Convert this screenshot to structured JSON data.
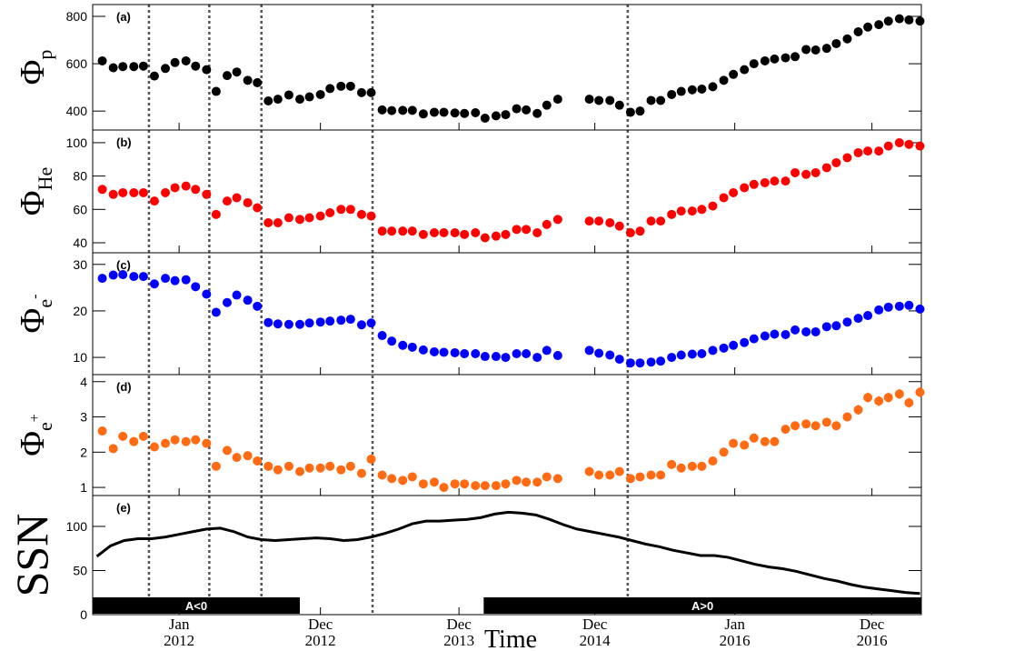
{
  "chart_data": {
    "type": "panels",
    "xlabel": "Time",
    "xlim": [
      2011.37,
      2017.41
    ],
    "xticks": [
      {
        "value": 2012.0,
        "label": "Jan 2012"
      },
      {
        "value": 2013.03,
        "label": "Dec 2012"
      },
      {
        "value": 2014.04,
        "label": "Dec 2013"
      },
      {
        "value": 2015.03,
        "label": "Dec 2014"
      },
      {
        "value": 2016.05,
        "label": "Jan 2016"
      },
      {
        "value": 2017.05,
        "label": "Dec 2016"
      }
    ],
    "reversal_lines": [
      2011.78,
      2012.22,
      2012.6,
      2013.41,
      2015.27
    ],
    "polarity_bands": [
      {
        "label": "A<0",
        "start": 2011.37,
        "end": 2012.88
      },
      {
        "label": "A>0",
        "start": 2014.22,
        "end": 2017.41
      }
    ],
    "x": [
      2011.44,
      2011.52,
      2011.59,
      2011.67,
      2011.74,
      2011.82,
      2011.9,
      2011.97,
      2012.05,
      2012.12,
      2012.2,
      2012.27,
      2012.35,
      2012.42,
      2012.5,
      2012.57,
      2012.65,
      2012.72,
      2012.8,
      2012.88,
      2012.95,
      2013.03,
      2013.1,
      2013.18,
      2013.25,
      2013.33,
      2013.4,
      2013.48,
      2013.55,
      2013.63,
      2013.7,
      2013.78,
      2013.86,
      2013.93,
      2014.01,
      2014.08,
      2014.16,
      2014.23,
      2014.31,
      2014.38,
      2014.46,
      2014.53,
      2014.61,
      2014.68,
      2014.76,
      2014.83,
      2014.91,
      2014.99,
      2015.06,
      2015.14,
      2015.21,
      2015.29,
      2015.36,
      2015.44,
      2015.51,
      2015.59,
      2015.66,
      2015.74,
      2015.81,
      2015.89,
      2015.97,
      2016.04,
      2016.12,
      2016.19,
      2016.27,
      2016.34,
      2016.42,
      2016.49,
      2016.57,
      2016.64,
      2016.72,
      2016.79,
      2016.87,
      2016.95,
      2017.02,
      2017.1,
      2017.17,
      2017.25,
      2017.32,
      2017.4
    ],
    "panels": [
      {
        "type": "scatter",
        "label": "(a)",
        "ylabel": "Φ",
        "ylabel_sub": "p",
        "color": "#000000",
        "ylim": [
          320,
          850
        ],
        "yticks": [
          400,
          600,
          800
        ],
        "values": [
          612,
          583,
          588,
          588,
          590,
          548,
          580,
          605,
          612,
          590,
          575,
          483,
          550,
          565,
          530,
          520,
          443,
          450,
          468,
          450,
          460,
          470,
          495,
          505,
          505,
          478,
          478,
          405,
          402,
          403,
          403,
          388,
          395,
          395,
          392,
          390,
          393,
          370,
          380,
          385,
          410,
          405,
          390,
          425,
          450,
          null,
          null,
          450,
          445,
          445,
          425,
          395,
          400,
          445,
          445,
          470,
          483,
          490,
          493,
          503,
          530,
          555,
          575,
          600,
          612,
          620,
          625,
          630,
          660,
          658,
          665,
          685,
          705,
          735,
          755,
          765,
          780,
          790,
          785,
          780
        ]
      },
      {
        "type": "scatter",
        "label": "(b)",
        "ylabel": "Φ",
        "ylabel_sub": "He",
        "color": "#ff0000",
        "ylim": [
          34,
          107.6
        ],
        "yticks": [
          40,
          60,
          80,
          100
        ],
        "values": [
          72,
          69,
          70,
          70,
          70,
          65,
          70,
          73,
          74,
          72,
          69,
          57,
          65,
          67,
          64,
          61,
          52,
          52,
          55,
          54,
          55,
          56,
          58,
          60,
          60,
          57,
          56,
          47,
          47,
          47,
          47,
          45,
          46,
          46,
          46,
          45,
          46,
          43,
          44,
          45,
          48,
          48,
          46,
          51,
          54,
          null,
          null,
          53,
          53,
          52,
          50,
          46,
          47,
          53,
          53,
          57,
          59,
          59,
          60,
          62,
          67,
          70,
          73,
          75,
          76,
          77,
          77,
          82,
          81,
          82,
          85,
          88,
          91,
          94,
          95,
          95,
          98,
          100,
          99,
          98
        ]
      },
      {
        "type": "scatter",
        "label": "(c)",
        "ylabel": "Φ",
        "ylabel_sub": "e",
        "ylabel_sup": "-",
        "color": "#0000ff",
        "ylim": [
          6.3,
          32.5
        ],
        "yticks": [
          10,
          20,
          30
        ],
        "values": [
          27,
          27.7,
          27.8,
          27.4,
          27.4,
          25.8,
          27,
          26.5,
          26.7,
          25.2,
          23.6,
          19.7,
          21.8,
          23.4,
          22.3,
          21,
          17.5,
          17.2,
          17.1,
          17.1,
          17.4,
          17.6,
          17.8,
          18,
          18.2,
          17,
          17.4,
          14.7,
          13.5,
          12.6,
          12.2,
          11.6,
          11.2,
          11.1,
          11,
          10.8,
          10.8,
          10.2,
          10.2,
          10,
          10.8,
          10.8,
          10,
          11.5,
          10.4,
          null,
          null,
          11.5,
          10.9,
          10.5,
          9.6,
          8.8,
          8.8,
          9,
          9.2,
          10,
          10.5,
          10.7,
          10.8,
          11.5,
          12,
          12.6,
          13.2,
          14,
          14.6,
          15,
          14.9,
          15.9,
          15.5,
          15.5,
          16.6,
          16.8,
          17.6,
          18.4,
          19,
          20.2,
          20.8,
          21,
          21.2,
          20.4
        ]
      },
      {
        "type": "scatter",
        "label": "(d)",
        "ylabel": "Φ",
        "ylabel_sub": "e",
        "ylabel_sup": "+",
        "color": "#ff6a13",
        "ylim": [
          0.77,
          4.2
        ],
        "yticks": [
          1,
          2,
          3,
          4
        ],
        "values": [
          2.6,
          2.1,
          2.45,
          2.3,
          2.45,
          2.15,
          2.25,
          2.35,
          2.3,
          2.35,
          2.25,
          1.6,
          2.05,
          1.85,
          1.9,
          1.75,
          1.6,
          1.5,
          1.6,
          1.45,
          1.55,
          1.55,
          1.6,
          1.5,
          1.6,
          1.4,
          1.8,
          1.35,
          1.25,
          1.2,
          1.3,
          1.1,
          1.15,
          1.0,
          1.1,
          1.1,
          1.05,
          1.05,
          1.05,
          1.1,
          1.2,
          1.15,
          1.15,
          1.3,
          1.25,
          null,
          null,
          1.45,
          1.35,
          1.35,
          1.45,
          1.25,
          1.3,
          1.35,
          1.35,
          1.65,
          1.55,
          1.6,
          1.6,
          1.75,
          2.0,
          2.25,
          2.2,
          2.4,
          2.3,
          2.3,
          2.65,
          2.75,
          2.8,
          2.75,
          2.85,
          2.75,
          3.0,
          3.2,
          3.55,
          3.45,
          3.55,
          3.65,
          3.4,
          3.7
        ],
        "errors": [
          0.12,
          0.1,
          0.1,
          0.1,
          0.1,
          0.1,
          0.1,
          0.1,
          0.1,
          0.1,
          0.1,
          0.08,
          0.1,
          0.08,
          0.08,
          0.08,
          0.08,
          0.08,
          0.08,
          0.08,
          0.08,
          0.08,
          0.08,
          0.08,
          0.08,
          0.08,
          0.08,
          0.08,
          0.07,
          0.07,
          0.07,
          0.07,
          0.07,
          0.07,
          0.07,
          0.07,
          0.07,
          0.07,
          0.07,
          0.07,
          0.07,
          0.07,
          0.07,
          0.07,
          0.07,
          null,
          null,
          0.07,
          0.07,
          0.07,
          0.07,
          0.07,
          0.07,
          0.07,
          0.07,
          0.08,
          0.08,
          0.08,
          0.08,
          0.08,
          0.1,
          0.1,
          0.1,
          0.1,
          0.1,
          0.1,
          0.12,
          0.12,
          0.12,
          0.12,
          0.12,
          0.12,
          0.12,
          0.14,
          0.14,
          0.14,
          0.14,
          0.14,
          0.14,
          0.14
        ]
      },
      {
        "type": "line",
        "label": "(e)",
        "ylabel": "SSN",
        "color": "#000000",
        "ylim": [
          0,
          135
        ],
        "yticks": [
          0,
          50,
          100
        ],
        "x": [
          2011.4,
          2011.5,
          2011.6,
          2011.7,
          2011.8,
          2011.9,
          2012.0,
          2012.1,
          2012.2,
          2012.3,
          2012.4,
          2012.5,
          2012.6,
          2012.7,
          2012.8,
          2012.9,
          2013.0,
          2013.1,
          2013.2,
          2013.3,
          2013.4,
          2013.5,
          2013.6,
          2013.7,
          2013.8,
          2013.9,
          2014.0,
          2014.1,
          2014.2,
          2014.3,
          2014.4,
          2014.5,
          2014.6,
          2014.7,
          2014.8,
          2014.9,
          2015.0,
          2015.1,
          2015.2,
          2015.3,
          2015.4,
          2015.5,
          2015.6,
          2015.7,
          2015.8,
          2015.9,
          2016.0,
          2016.1,
          2016.2,
          2016.3,
          2016.4,
          2016.5,
          2016.6,
          2016.7,
          2016.8,
          2016.9,
          2017.0,
          2017.1,
          2017.2,
          2017.3,
          2017.4
        ],
        "values": [
          66,
          78,
          84,
          86,
          86,
          88,
          91,
          94,
          97,
          98,
          94,
          88,
          85,
          84,
          85,
          86,
          87,
          86,
          84,
          85,
          88,
          92,
          97,
          103,
          106,
          106,
          107,
          108,
          110,
          114,
          116,
          115,
          113,
          108,
          102,
          97,
          94,
          91,
          88,
          84,
          80,
          77,
          73,
          70,
          67,
          67,
          65,
          61,
          57,
          54,
          52,
          49,
          45,
          41,
          38,
          34,
          31,
          29,
          27,
          25,
          24
        ]
      }
    ]
  }
}
